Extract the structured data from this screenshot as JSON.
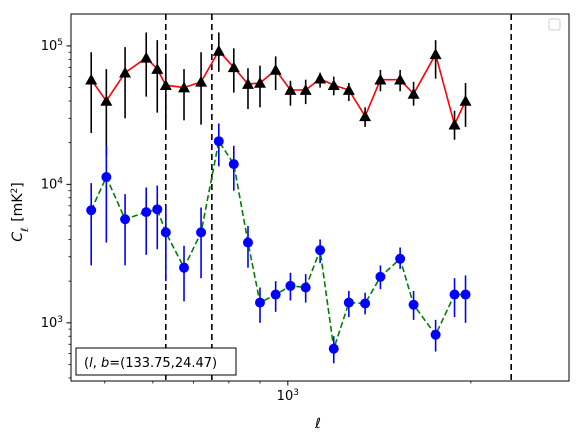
{
  "chart_data": {
    "type": "scatter",
    "title": "",
    "xlabel": "ℓ",
    "ylabel": "C",
    "ylabel_sub": "ℓ",
    "ylabel_unit": "[mK",
    "ylabel_unit_sup": "2",
    "ylabel_unit_close": "]",
    "x_scale": "log",
    "y_scale": "log",
    "xlim": [
      440,
      2900
    ],
    "ylim": [
      380,
      170000
    ],
    "x_ticks": [
      {
        "value": 1000,
        "base": "10",
        "exp": "3"
      }
    ],
    "y_ticks": [
      {
        "value": 1000,
        "base": "10",
        "exp": "3"
      },
      {
        "value": 10000,
        "base": "10",
        "exp": "4"
      },
      {
        "value": 100000,
        "base": "10",
        "exp": "5"
      }
    ],
    "grid": false,
    "legend": {
      "placement": "top-right",
      "entries": []
    },
    "annotation": {
      "label": "(l, b)=(133.75,24.47)",
      "l": "l",
      "b": "b",
      "values": "=(133.75,24.47)"
    },
    "vlines": {
      "style": "dashed",
      "color": "#000000",
      "x": [
        630,
        750,
        2330
      ]
    },
    "series": [
      {
        "marker": "triangle",
        "marker_color": "#000000",
        "line_color": "#ff0000",
        "line_style": "solid",
        "errorbar_color": "#000000",
        "points": [
          {
            "x": 475,
            "y": 57000,
            "lo": 23500,
            "hi": 90000
          },
          {
            "x": 503,
            "y": 40000,
            "lo": 16000,
            "hi": 68000
          },
          {
            "x": 540,
            "y": 64000,
            "lo": 30000,
            "hi": 98000
          },
          {
            "x": 585,
            "y": 82000,
            "lo": 43000,
            "hi": 125000
          },
          {
            "x": 610,
            "y": 68000,
            "lo": 33000,
            "hi": 110000
          },
          {
            "x": 630,
            "y": 52000,
            "lo": 25000,
            "hi": 88000
          },
          {
            "x": 675,
            "y": 50000,
            "lo": 29000,
            "hi": 68000
          },
          {
            "x": 720,
            "y": 55000,
            "lo": 27000,
            "hi": 90000
          },
          {
            "x": 770,
            "y": 92000,
            "lo": 65000,
            "hi": 125000
          },
          {
            "x": 815,
            "y": 70000,
            "lo": 46000,
            "hi": 96000
          },
          {
            "x": 860,
            "y": 53000,
            "lo": 35000,
            "hi": 69000
          },
          {
            "x": 900,
            "y": 54000,
            "lo": 36000,
            "hi": 72000
          },
          {
            "x": 955,
            "y": 67000,
            "lo": 48000,
            "hi": 84000
          },
          {
            "x": 1010,
            "y": 48000,
            "lo": 37000,
            "hi": 56000
          },
          {
            "x": 1070,
            "y": 48000,
            "lo": 38000,
            "hi": 57000
          },
          {
            "x": 1130,
            "y": 58000,
            "lo": 50000,
            "hi": 64000
          },
          {
            "x": 1190,
            "y": 52000,
            "lo": 44000,
            "hi": 60000
          },
          {
            "x": 1260,
            "y": 48000,
            "lo": 40000,
            "hi": 54000
          },
          {
            "x": 1340,
            "y": 31000,
            "lo": 26000,
            "hi": 36000
          },
          {
            "x": 1420,
            "y": 57000,
            "lo": 47000,
            "hi": 67000
          },
          {
            "x": 1530,
            "y": 57000,
            "lo": 47000,
            "hi": 67000
          },
          {
            "x": 1610,
            "y": 45000,
            "lo": 37000,
            "hi": 55000
          },
          {
            "x": 1750,
            "y": 87000,
            "lo": 58000,
            "hi": 110000
          },
          {
            "x": 1880,
            "y": 27000,
            "lo": 21000,
            "hi": 34000
          },
          {
            "x": 1960,
            "y": 40000,
            "lo": 26000,
            "hi": 54000
          }
        ]
      },
      {
        "marker": "circle",
        "marker_color": "#0000ff",
        "line_color": "#008000",
        "line_style": "dashed",
        "errorbar_color": "#0000ff",
        "points": [
          {
            "x": 475,
            "y": 6500,
            "lo": 2600,
            "hi": 10200
          },
          {
            "x": 503,
            "y": 11300,
            "lo": 3800,
            "hi": 19000
          },
          {
            "x": 540,
            "y": 5600,
            "lo": 2600,
            "hi": 8500
          },
          {
            "x": 585,
            "y": 6300,
            "lo": 3100,
            "hi": 9500
          },
          {
            "x": 610,
            "y": 6600,
            "lo": 3400,
            "hi": 9800
          },
          {
            "x": 630,
            "y": 4500,
            "lo": 2000,
            "hi": 7000
          },
          {
            "x": 675,
            "y": 2500,
            "lo": 1430,
            "hi": 3600
          },
          {
            "x": 720,
            "y": 4500,
            "lo": 2100,
            "hi": 6800
          },
          {
            "x": 770,
            "y": 20500,
            "lo": 13500,
            "hi": 27500
          },
          {
            "x": 815,
            "y": 14000,
            "lo": 9000,
            "hi": 19000
          },
          {
            "x": 860,
            "y": 3800,
            "lo": 2500,
            "hi": 5000
          },
          {
            "x": 900,
            "y": 1400,
            "lo": 1000,
            "hi": 1800
          },
          {
            "x": 955,
            "y": 1600,
            "lo": 1200,
            "hi": 2000
          },
          {
            "x": 1010,
            "y": 1850,
            "lo": 1450,
            "hi": 2300
          },
          {
            "x": 1070,
            "y": 1800,
            "lo": 1400,
            "hi": 2250
          },
          {
            "x": 1130,
            "y": 3350,
            "lo": 2700,
            "hi": 4000
          },
          {
            "x": 1190,
            "y": 650,
            "lo": 510,
            "hi": 800
          },
          {
            "x": 1260,
            "y": 1400,
            "lo": 1100,
            "hi": 1700
          },
          {
            "x": 1340,
            "y": 1380,
            "lo": 1150,
            "hi": 1650
          },
          {
            "x": 1420,
            "y": 2150,
            "lo": 1750,
            "hi": 2600
          },
          {
            "x": 1530,
            "y": 2900,
            "lo": 2450,
            "hi": 3500
          },
          {
            "x": 1610,
            "y": 1350,
            "lo": 1050,
            "hi": 1700
          },
          {
            "x": 1750,
            "y": 820,
            "lo": 620,
            "hi": 1050
          },
          {
            "x": 1880,
            "y": 1600,
            "lo": 1100,
            "hi": 2100
          },
          {
            "x": 1960,
            "y": 1600,
            "lo": 1000,
            "hi": 2200
          }
        ]
      }
    ]
  }
}
